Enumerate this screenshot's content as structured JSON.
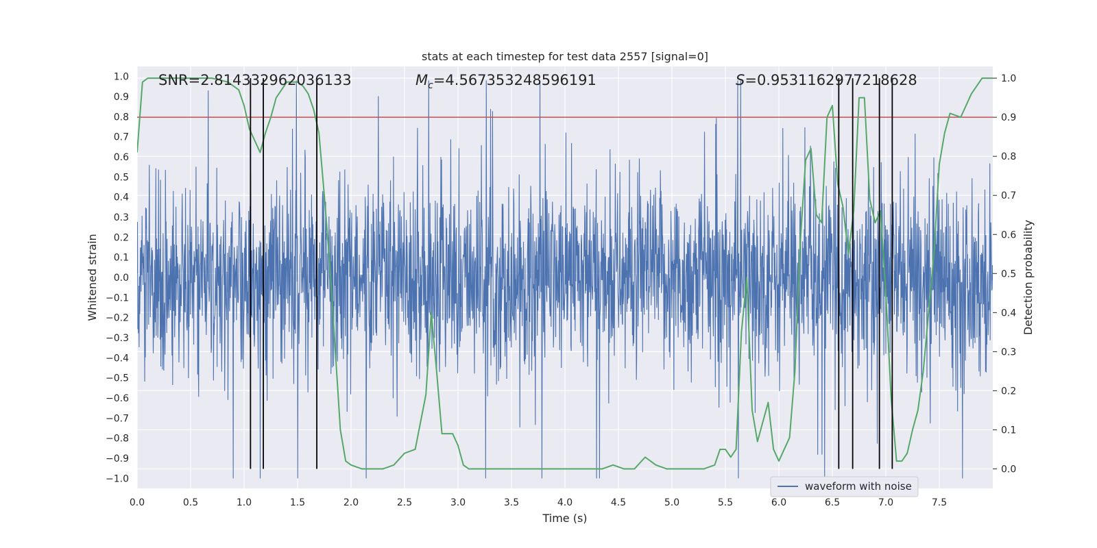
{
  "chart_data": {
    "type": "line",
    "title": "stats at each timestep for test data 2557 [signal=0]",
    "xlabel": "Time (s)",
    "ylabel_left": "Whitened strain",
    "ylabel_right": "Detection probability",
    "xlim": [
      0.0,
      8.0
    ],
    "ylim_left": [
      -1.05,
      1.05
    ],
    "ylim_right": [
      -0.05,
      1.03
    ],
    "x_ticks": [
      "0.0",
      "0.5",
      "1.0",
      "1.5",
      "2.0",
      "2.5",
      "3.0",
      "3.5",
      "4.0",
      "4.5",
      "5.0",
      "5.5",
      "6.0",
      "6.5",
      "7.0",
      "7.5"
    ],
    "y_ticks_left": [
      "1.0",
      "0.9",
      "0.8",
      "0.7",
      "0.6",
      "0.5",
      "0.4",
      "0.3",
      "0.2",
      "0.1",
      "0.0",
      "-0.1",
      "-0.2",
      "-0.3",
      "-0.4",
      "-0.5",
      "-0.6",
      "-0.7",
      "-0.8",
      "-0.9",
      "-1.0"
    ],
    "y_ticks_right": [
      "1.0",
      "0.9",
      "0.8",
      "0.7",
      "0.6",
      "0.5",
      "0.4",
      "0.3",
      "0.2",
      "0.1",
      "0.0"
    ],
    "grid": true,
    "legend_position": "bottom-right",
    "annotations": {
      "snr": "SNR=2.814332962036133",
      "mc_symbol": "M",
      "mc_sub": "c",
      "mc_value": "=4.567353248596191",
      "s_symbol": "S",
      "s_value": "=0.9531162977218628"
    },
    "series": [
      {
        "name": "waveform with noise",
        "color": "#4c72b0",
        "kind": "noise",
        "duration": 8.0,
        "amplitude_envelope": 0.6
      },
      {
        "color": "#55a868",
        "axis": "right",
        "x": [
          0.0,
          0.05,
          0.1,
          0.2,
          0.3,
          0.5,
          0.7,
          0.85,
          0.95,
          1.0,
          1.05,
          1.1,
          1.15,
          1.2,
          1.25,
          1.3,
          1.4,
          1.45,
          1.5,
          1.55,
          1.6,
          1.65,
          1.7,
          1.75,
          1.8,
          1.9,
          1.95,
          2.0,
          2.1,
          2.2,
          2.3,
          2.4,
          2.5,
          2.6,
          2.7,
          2.75,
          2.8,
          2.85,
          2.95,
          3.0,
          3.05,
          3.1,
          3.2,
          3.5,
          3.75,
          4.0,
          4.25,
          4.35,
          4.45,
          4.55,
          4.65,
          4.75,
          4.85,
          4.95,
          5.05,
          5.15,
          5.3,
          5.4,
          5.45,
          5.5,
          5.55,
          5.6,
          5.65,
          5.7,
          5.75,
          5.8,
          5.85,
          5.9,
          5.95,
          6.0,
          6.05,
          6.1,
          6.15,
          6.2,
          6.25,
          6.3,
          6.35,
          6.4,
          6.45,
          6.5,
          6.55,
          6.6,
          6.65,
          6.7,
          6.75,
          6.8,
          6.85,
          6.9,
          6.95,
          7.0,
          7.05,
          7.1,
          7.15,
          7.2,
          7.25,
          7.3,
          7.35,
          7.4,
          7.45,
          7.5,
          7.55,
          7.6,
          7.7,
          7.8,
          7.85,
          7.9,
          7.95,
          8.0
        ],
        "y": [
          0.81,
          0.99,
          1.0,
          1.0,
          1.0,
          1.0,
          1.0,
          0.99,
          0.97,
          0.93,
          0.87,
          0.84,
          0.81,
          0.86,
          0.9,
          0.95,
          0.99,
          0.99,
          0.99,
          0.98,
          0.96,
          0.92,
          0.86,
          0.7,
          0.53,
          0.1,
          0.02,
          0.01,
          0.0,
          0.0,
          0.0,
          0.01,
          0.04,
          0.05,
          0.19,
          0.4,
          0.25,
          0.09,
          0.09,
          0.06,
          0.01,
          0.0,
          0.0,
          0.0,
          0.0,
          0.0,
          0.0,
          0.0,
          0.01,
          0.0,
          0.0,
          0.03,
          0.01,
          0.0,
          0.0,
          0.0,
          0.0,
          0.01,
          0.05,
          0.05,
          0.03,
          0.05,
          0.35,
          0.49,
          0.15,
          0.07,
          0.12,
          0.17,
          0.05,
          0.02,
          0.05,
          0.08,
          0.25,
          0.58,
          0.79,
          0.82,
          0.65,
          0.63,
          0.9,
          0.93,
          0.73,
          0.67,
          0.55,
          0.66,
          0.95,
          0.95,
          0.69,
          0.63,
          0.66,
          0.45,
          0.18,
          0.02,
          0.02,
          0.04,
          0.1,
          0.15,
          0.25,
          0.4,
          0.55,
          0.78,
          0.86,
          0.91,
          0.9,
          0.96,
          0.98,
          1.0,
          1.0,
          1.0
        ]
      },
      {
        "color": "#c44e52",
        "axis": "right",
        "kind": "threshold",
        "y": 0.9
      }
    ],
    "vlines": [
      1.06,
      1.18,
      1.68,
      6.56,
      6.69,
      6.94,
      7.06
    ]
  }
}
